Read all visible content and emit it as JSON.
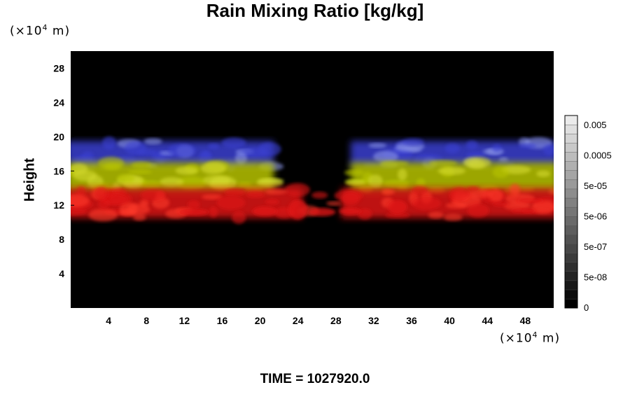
{
  "chart_data": {
    "type": "heatmap",
    "title": "Rain Mixing Ratio [kg/kg]",
    "ylabel": "Height",
    "y_unit": {
      "prefix": "(×10",
      "exp": "4",
      "suffix": " m)"
    },
    "x_unit": {
      "prefix": "(×10",
      "exp": "4",
      "suffix": " m)"
    },
    "xlim": [
      0,
      51
    ],
    "ylim": [
      0,
      30
    ],
    "x_ticks": [
      4,
      8,
      12,
      16,
      20,
      24,
      28,
      32,
      36,
      40,
      44,
      48
    ],
    "y_ticks": [
      4,
      8,
      12,
      16,
      20,
      24,
      28
    ],
    "bands": [
      {
        "name": "upper",
        "color": "#3a3fd0",
        "y_range": [
          16.5,
          19.5
        ]
      },
      {
        "name": "middle",
        "color": "#b8c400",
        "y_range": [
          13.5,
          17
        ]
      },
      {
        "name": "lower",
        "color": "#e01818",
        "y_range": [
          10.5,
          14
        ]
      }
    ],
    "gap_x_range": [
      21,
      30
    ],
    "colorbar": {
      "tick_labels": [
        "0.005",
        "0.0005",
        "5e-05",
        "5e-06",
        "5e-07",
        "5e-08",
        "0"
      ]
    },
    "footer": {
      "label": "TIME",
      "value": "1027920.0"
    }
  }
}
